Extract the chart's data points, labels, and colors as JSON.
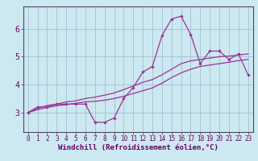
{
  "xlabel": "Windchill (Refroidissement éolien,°C)",
  "bg_color": "#cce8f0",
  "line_color": "#993399",
  "grid_color": "#99bbcc",
  "axis_color": "#660066",
  "spine_color": "#554466",
  "x_values": [
    0,
    1,
    2,
    3,
    4,
    5,
    6,
    7,
    8,
    9,
    10,
    11,
    12,
    13,
    14,
    15,
    16,
    17,
    18,
    19,
    20,
    21,
    22,
    23
  ],
  "series1": [
    3.0,
    3.2,
    3.2,
    3.3,
    3.3,
    3.3,
    3.3,
    2.65,
    2.65,
    2.8,
    3.5,
    3.9,
    4.45,
    4.65,
    5.75,
    6.35,
    6.45,
    5.8,
    4.75,
    5.2,
    5.2,
    4.9,
    5.1,
    4.35
  ],
  "series2": [
    3.0,
    3.15,
    3.25,
    3.3,
    3.38,
    3.42,
    3.5,
    3.55,
    3.62,
    3.7,
    3.82,
    3.95,
    4.08,
    4.18,
    4.35,
    4.55,
    4.75,
    4.85,
    4.9,
    4.95,
    5.0,
    5.02,
    5.06,
    5.1
  ],
  "series3": [
    3.0,
    3.1,
    3.18,
    3.24,
    3.28,
    3.33,
    3.38,
    3.4,
    3.44,
    3.5,
    3.58,
    3.68,
    3.78,
    3.88,
    4.05,
    4.25,
    4.42,
    4.55,
    4.65,
    4.7,
    4.75,
    4.8,
    4.86,
    4.9
  ],
  "xlim": [
    -0.5,
    23.5
  ],
  "ylim": [
    2.3,
    6.8
  ],
  "yticks": [
    3,
    4,
    5,
    6
  ],
  "xticks": [
    0,
    1,
    2,
    3,
    4,
    5,
    6,
    7,
    8,
    9,
    10,
    11,
    12,
    13,
    14,
    15,
    16,
    17,
    18,
    19,
    20,
    21,
    22,
    23
  ],
  "xlabel_fontsize": 6.5,
  "ytick_fontsize": 7,
  "xtick_fontsize": 5.5
}
